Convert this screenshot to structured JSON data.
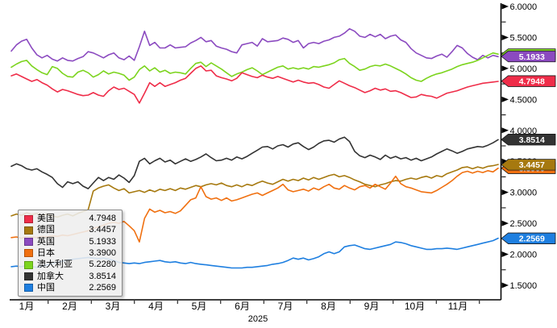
{
  "page": {
    "background": "#ffffff"
  },
  "chart_data": {
    "type": "line",
    "title": "",
    "grid": "off",
    "x_axis": {
      "tick_labels": [
        "1月",
        "2月",
        "3月",
        "4月",
        "5月",
        "6月",
        "7月",
        "8月",
        "9月",
        "10月",
        "11月"
      ],
      "year_label": "2025",
      "minor_ticks": "month boundaries"
    },
    "y_axis": {
      "side": "right",
      "min": 1.5,
      "max": 6.0,
      "tick_step": 0.5,
      "minor_tick_step": 0.25,
      "tick_labels": [
        "6.0000",
        "5.5000",
        "5.0000",
        "4.5000",
        "4.0000",
        "3.5000",
        "3.0000",
        "2.5000",
        "2.0000",
        "1.5000"
      ]
    },
    "legend_position": "bottom-left",
    "x_start_month": 0.65,
    "x_end_month": 11.93,
    "n_points": 96,
    "series": [
      {
        "key": "us",
        "name": "美国",
        "color": "#ef2d49",
        "last_label": "4.7948",
        "last_value": 4.7948,
        "values": [
          4.88,
          4.91,
          4.87,
          4.83,
          4.79,
          4.82,
          4.77,
          4.73,
          4.67,
          4.62,
          4.66,
          4.64,
          4.61,
          4.58,
          4.56,
          4.57,
          4.61,
          4.57,
          4.55,
          4.64,
          4.7,
          4.66,
          4.68,
          4.63,
          4.58,
          4.44,
          4.6,
          4.77,
          4.71,
          4.77,
          4.71,
          4.74,
          4.77,
          4.81,
          4.84,
          4.92,
          5.0,
          5.04,
          4.96,
          4.97,
          4.88,
          4.85,
          4.83,
          4.8,
          4.84,
          4.93,
          4.9,
          4.87,
          4.85,
          4.89,
          4.86,
          4.84,
          4.87,
          4.84,
          4.81,
          4.78,
          4.81,
          4.78,
          4.76,
          4.77,
          4.74,
          4.7,
          4.68,
          4.74,
          4.8,
          4.76,
          4.72,
          4.69,
          4.65,
          4.61,
          4.64,
          4.68,
          4.65,
          4.67,
          4.63,
          4.64,
          4.61,
          4.57,
          4.53,
          4.54,
          4.58,
          4.56,
          4.55,
          4.52,
          4.56,
          4.6,
          4.62,
          4.64,
          4.67,
          4.7,
          4.72,
          4.74,
          4.76,
          4.77,
          4.78,
          4.79
        ]
      },
      {
        "key": "de",
        "name": "德国",
        "color": "#a6790f",
        "last_label": "3.4457",
        "last_value": 3.4457,
        "values": [
          2.62,
          2.65,
          2.63,
          2.67,
          2.64,
          2.66,
          2.63,
          2.65,
          2.62,
          2.6,
          2.63,
          2.65,
          2.62,
          2.66,
          2.69,
          2.72,
          3.02,
          3.07,
          3.1,
          3.12,
          3.07,
          3.03,
          3.06,
          2.99,
          3.01,
          3.03,
          3.0,
          3.04,
          3.01,
          3.05,
          3.03,
          3.06,
          3.03,
          3.07,
          3.05,
          3.08,
          3.11,
          3.09,
          3.12,
          3.14,
          3.12,
          3.15,
          3.11,
          3.09,
          3.12,
          3.09,
          3.13,
          3.11,
          3.15,
          3.18,
          3.15,
          3.13,
          3.17,
          3.21,
          3.18,
          3.21,
          3.19,
          3.23,
          3.2,
          3.24,
          3.21,
          3.24,
          3.27,
          3.29,
          3.25,
          3.27,
          3.24,
          3.2,
          3.17,
          3.13,
          3.11,
          3.09,
          3.12,
          3.14,
          3.17,
          3.19,
          3.18,
          3.21,
          3.23,
          3.21,
          3.24,
          3.26,
          3.23,
          3.27,
          3.25,
          3.3,
          3.33,
          3.36,
          3.4,
          3.41,
          3.38,
          3.41,
          3.39,
          3.42,
          3.43,
          3.45
        ]
      },
      {
        "key": "uk",
        "name": "英国",
        "color": "#8b4ac0",
        "last_label": "5.1933",
        "last_value": 5.1933,
        "values": [
          5.28,
          5.38,
          5.44,
          5.47,
          5.33,
          5.22,
          5.17,
          5.21,
          5.15,
          5.12,
          5.17,
          5.13,
          5.12,
          5.16,
          5.19,
          5.27,
          5.25,
          5.21,
          5.17,
          5.22,
          5.25,
          5.17,
          5.14,
          5.2,
          5.13,
          5.35,
          5.6,
          5.37,
          5.42,
          5.33,
          5.33,
          5.38,
          5.33,
          5.34,
          5.35,
          5.41,
          5.45,
          5.5,
          5.43,
          5.45,
          5.36,
          5.33,
          5.31,
          5.27,
          5.25,
          5.38,
          5.4,
          5.42,
          5.36,
          5.48,
          5.43,
          5.44,
          5.45,
          5.49,
          5.47,
          5.42,
          5.45,
          5.33,
          5.4,
          5.42,
          5.4,
          5.44,
          5.46,
          5.5,
          5.52,
          5.57,
          5.64,
          5.6,
          5.52,
          5.5,
          5.55,
          5.51,
          5.55,
          5.48,
          5.52,
          5.54,
          5.46,
          5.42,
          5.32,
          5.25,
          5.21,
          5.17,
          5.16,
          5.2,
          5.23,
          5.18,
          5.27,
          5.37,
          5.33,
          5.24,
          5.18,
          5.14,
          5.21,
          5.17,
          5.21,
          5.19
        ]
      },
      {
        "key": "jp",
        "name": "日本",
        "color": "#f07010",
        "last_label": "3.3900",
        "last_value": 3.39,
        "values": [
          2.27,
          2.28,
          2.26,
          2.29,
          2.28,
          2.27,
          2.29,
          2.28,
          2.3,
          2.29,
          2.31,
          2.3,
          2.32,
          2.34,
          2.36,
          2.38,
          2.42,
          2.44,
          2.47,
          2.5,
          2.52,
          2.5,
          2.53,
          2.46,
          2.38,
          2.2,
          2.58,
          2.73,
          2.68,
          2.71,
          2.67,
          2.69,
          2.66,
          2.7,
          2.79,
          2.88,
          2.91,
          3.09,
          2.93,
          2.89,
          2.91,
          2.87,
          2.91,
          2.86,
          2.88,
          2.91,
          2.94,
          2.97,
          2.99,
          2.95,
          2.99,
          3.03,
          3.07,
          3.13,
          3.04,
          3.01,
          3.03,
          3.05,
          3.02,
          3.07,
          3.04,
          3.09,
          3.13,
          3.07,
          3.05,
          3.11,
          3.07,
          3.04,
          3.09,
          3.11,
          3.07,
          3.13,
          3.09,
          3.05,
          3.15,
          3.26,
          3.14,
          3.09,
          3.07,
          3.04,
          3.01,
          3.0,
          2.99,
          3.03,
          3.08,
          3.13,
          3.19,
          3.26,
          3.32,
          3.34,
          3.31,
          3.34,
          3.32,
          3.35,
          3.33,
          3.39
        ]
      },
      {
        "key": "au",
        "name": "澳大利亚",
        "color": "#7cd41e",
        "last_label": "5.2280",
        "last_value": 5.228,
        "values": [
          5.02,
          5.07,
          5.11,
          5.13,
          5.04,
          4.98,
          4.93,
          4.9,
          5.03,
          5.0,
          4.92,
          4.87,
          4.86,
          4.94,
          4.97,
          4.93,
          4.86,
          4.9,
          4.96,
          4.91,
          4.94,
          4.92,
          4.89,
          4.81,
          4.86,
          4.98,
          5.04,
          4.96,
          5.01,
          4.94,
          4.97,
          4.92,
          4.94,
          4.93,
          4.91,
          5.0,
          5.08,
          5.1,
          5.03,
          5.09,
          5.04,
          4.99,
          4.93,
          4.87,
          4.91,
          4.94,
          4.98,
          5.01,
          4.96,
          4.9,
          4.94,
          4.98,
          5.02,
          5.04,
          4.99,
          5.01,
          4.99,
          5.01,
          4.99,
          5.03,
          5.02,
          5.04,
          5.06,
          5.09,
          5.14,
          5.16,
          5.08,
          5.03,
          4.97,
          4.99,
          5.03,
          5.05,
          5.04,
          5.07,
          5.04,
          5.0,
          4.96,
          4.91,
          4.85,
          4.81,
          4.79,
          4.84,
          4.88,
          4.91,
          4.93,
          4.96,
          4.99,
          5.03,
          5.06,
          5.08,
          5.1,
          5.13,
          5.17,
          5.21,
          5.25,
          5.23
        ]
      },
      {
        "key": "ca",
        "name": "加拿大",
        "color": "#333333",
        "last_label": "3.8514",
        "last_value": 3.8514,
        "values": [
          3.42,
          3.46,
          3.43,
          3.38,
          3.36,
          3.38,
          3.33,
          3.29,
          3.24,
          3.14,
          3.08,
          3.17,
          3.14,
          3.17,
          3.1,
          3.06,
          3.15,
          3.24,
          3.19,
          3.24,
          3.21,
          3.28,
          3.23,
          3.16,
          3.27,
          3.5,
          3.55,
          3.46,
          3.51,
          3.55,
          3.49,
          3.52,
          3.46,
          3.5,
          3.54,
          3.5,
          3.53,
          3.57,
          3.62,
          3.56,
          3.51,
          3.52,
          3.55,
          3.52,
          3.57,
          3.54,
          3.58,
          3.63,
          3.68,
          3.73,
          3.74,
          3.7,
          3.75,
          3.77,
          3.73,
          3.78,
          3.8,
          3.74,
          3.69,
          3.73,
          3.79,
          3.83,
          3.84,
          3.81,
          3.86,
          3.89,
          3.82,
          3.66,
          3.59,
          3.56,
          3.6,
          3.57,
          3.53,
          3.6,
          3.55,
          3.58,
          3.54,
          3.56,
          3.52,
          3.55,
          3.51,
          3.54,
          3.57,
          3.62,
          3.66,
          3.7,
          3.67,
          3.63,
          3.66,
          3.7,
          3.72,
          3.74,
          3.73,
          3.76,
          3.8,
          3.85
        ]
      },
      {
        "key": "cn",
        "name": "中国",
        "color": "#1e7fe0",
        "last_label": "2.2569",
        "last_value": 2.2569,
        "values": [
          1.8,
          1.81,
          1.8,
          1.82,
          1.8,
          1.79,
          1.81,
          1.83,
          1.85,
          1.87,
          1.89,
          1.91,
          1.92,
          1.93,
          1.94,
          1.95,
          1.94,
          1.93,
          1.94,
          1.92,
          1.9,
          1.87,
          1.86,
          1.85,
          1.86,
          1.85,
          1.87,
          1.88,
          1.89,
          1.9,
          1.88,
          1.87,
          1.88,
          1.86,
          1.85,
          1.87,
          1.85,
          1.84,
          1.83,
          1.82,
          1.81,
          1.8,
          1.79,
          1.78,
          1.78,
          1.78,
          1.79,
          1.79,
          1.8,
          1.81,
          1.82,
          1.84,
          1.85,
          1.87,
          1.9,
          1.94,
          1.92,
          1.94,
          1.91,
          1.93,
          1.96,
          2.01,
          2.04,
          2.01,
          2.04,
          2.12,
          2.14,
          2.15,
          2.12,
          2.09,
          2.08,
          2.1,
          2.12,
          2.14,
          2.16,
          2.2,
          2.19,
          2.17,
          2.14,
          2.12,
          2.1,
          2.08,
          2.08,
          2.09,
          2.09,
          2.1,
          2.09,
          2.08,
          2.1,
          2.12,
          2.14,
          2.16,
          2.18,
          2.2,
          2.22,
          2.26
        ]
      }
    ]
  }
}
